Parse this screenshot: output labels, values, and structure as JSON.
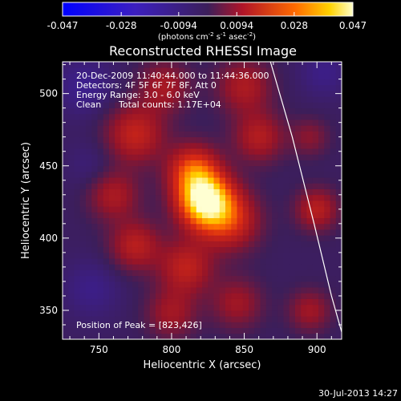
{
  "chart_data": {
    "type": "heatmap",
    "title": "Reconstructed RHESSI Image",
    "xlabel": "Heliocentric X (arcsec)",
    "ylabel": "Heliocentric Y (arcsec)",
    "xlim": [
      725,
      917
    ],
    "ylim": [
      330,
      522
    ],
    "x_ticks": [
      "750",
      "800",
      "850",
      "900"
    ],
    "y_ticks": [
      "350",
      "400",
      "450",
      "500"
    ],
    "colorbar": {
      "ticks": [
        "-0.047",
        "-0.028",
        "-0.0094",
        "0.0094",
        "0.028",
        "0.047"
      ],
      "range": [
        -0.047,
        0.047
      ],
      "units_label": "(photons cm",
      "units_exp1": "-2",
      "units_mid": " s",
      "units_exp2": "-1",
      "units_tail": " asec",
      "units_exp3": "-2",
      "units_close": ")"
    },
    "annotations": {
      "time_range": "20-Dec-2009 11:40:44.000 to 11:44:36.000",
      "detectors": "Detectors: 4F 5F 6F 7F 8F, Att 0",
      "energy": "Energy Range: 3.0 - 6.0 keV",
      "clean": "Clean",
      "counts": "Total counts: 1.17E+04",
      "peak": "Position of Peak = [823,426]"
    },
    "peak": [
      823,
      426
    ],
    "limb_points": [
      [
        868,
        522
      ],
      [
        883,
        470
      ],
      [
        898,
        410
      ],
      [
        910,
        360
      ],
      [
        917,
        335
      ]
    ],
    "sources": [
      {
        "x": 823,
        "y": 426,
        "amp": 0.047,
        "sigma": 13
      },
      {
        "x": 815,
        "y": 447,
        "amp": 0.025,
        "sigma": 12
      },
      {
        "x": 840,
        "y": 412,
        "amp": 0.02,
        "sigma": 14
      },
      {
        "x": 775,
        "y": 472,
        "amp": 0.018,
        "sigma": 14
      },
      {
        "x": 760,
        "y": 430,
        "amp": 0.014,
        "sigma": 12
      },
      {
        "x": 775,
        "y": 395,
        "amp": 0.016,
        "sigma": 12
      },
      {
        "x": 810,
        "y": 380,
        "amp": 0.017,
        "sigma": 13
      },
      {
        "x": 800,
        "y": 348,
        "amp": 0.012,
        "sigma": 12
      },
      {
        "x": 845,
        "y": 355,
        "amp": 0.012,
        "sigma": 12
      },
      {
        "x": 860,
        "y": 470,
        "amp": 0.015,
        "sigma": 12
      },
      {
        "x": 850,
        "y": 505,
        "amp": 0.014,
        "sigma": 13
      },
      {
        "x": 795,
        "y": 505,
        "amp": 0.013,
        "sigma": 12
      },
      {
        "x": 900,
        "y": 420,
        "amp": 0.016,
        "sigma": 10
      },
      {
        "x": 895,
        "y": 350,
        "amp": 0.012,
        "sigma": 10
      },
      {
        "x": 895,
        "y": 470,
        "amp": 0.009,
        "sigma": 9
      },
      {
        "x": 745,
        "y": 365,
        "amp": -0.006,
        "sigma": 14
      },
      {
        "x": 740,
        "y": 505,
        "amp": -0.007,
        "sigma": 14
      },
      {
        "x": 905,
        "y": 515,
        "amp": -0.006,
        "sigma": 12
      },
      {
        "x": 745,
        "y": 450,
        "amp": -0.004,
        "sigma": 12
      }
    ]
  },
  "footer": {
    "date": "30-Jul-2013 14:27"
  }
}
